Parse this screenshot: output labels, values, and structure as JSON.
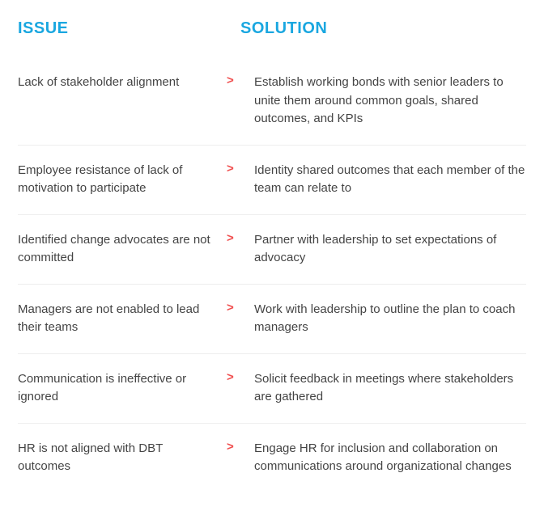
{
  "headers": {
    "issue": "ISSUE",
    "solution": "SOLUTION"
  },
  "colors": {
    "header": "#1aa7e0",
    "arrow": "#f04e4e",
    "text": "#444444",
    "divider": "#eeeeee",
    "background": "#ffffff"
  },
  "typography": {
    "header_fontsize": 20,
    "header_weight": 700,
    "body_fontsize": 15,
    "line_height": 1.5
  },
  "arrow_glyph": ">",
  "rows": [
    {
      "issue": "Lack of stakeholder alignment",
      "solution": "Establish working bonds with senior leaders to unite them around common goals, shared outcomes, and KPIs"
    },
    {
      "issue": "Employee resistance of lack of motivation to participate",
      "solution": "Identity shared outcomes that each member of the team can relate to"
    },
    {
      "issue": "Identified change advocates are not committed",
      "solution": "Partner with leadership to set expectations of advocacy"
    },
    {
      "issue": "Managers are not enabled to lead their teams",
      "solution": "Work with leadership to outline the plan to coach managers"
    },
    {
      "issue": "Communication is ineffective or ignored",
      "solution": "Solicit feedback in meetings where stakeholders are gathered"
    },
    {
      "issue": "HR is not aligned with DBT outcomes",
      "solution": "Engage HR for inclusion and collaboration on communications around organizational changes"
    }
  ]
}
